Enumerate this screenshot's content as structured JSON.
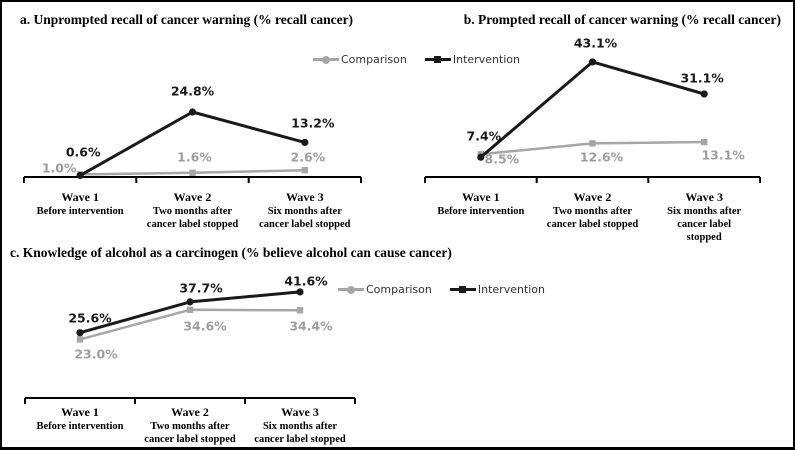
{
  "figure": {
    "legend": {
      "comparison": "Comparison",
      "intervention": "Intervention"
    },
    "colors": {
      "intervention": "#1a1a1a",
      "comparison": "#a6a6a6",
      "comparison_label": "#9e9e9e",
      "axis": "#000000"
    }
  },
  "chart_data": [
    {
      "id": "a",
      "type": "line",
      "title": "a. Unprompted recall of cancer warning (% recall cancer)",
      "categories": [
        "Wave 1",
        "Wave 2",
        "Wave 3"
      ],
      "category_sublabels": [
        "Before intervention",
        "Two months after\ncancer label stopped",
        "Six months after\ncancer label stopped"
      ],
      "y_axis_visible": false,
      "legend_position": "top-center-shared",
      "series": [
        {
          "name": "Comparison",
          "marker": "square",
          "values": [
            1.0,
            1.6,
            2.6
          ],
          "labels": [
            "1.0%",
            "1.6%",
            "2.6%"
          ]
        },
        {
          "name": "Intervention",
          "marker": "circle",
          "values": [
            0.6,
            24.8,
            13.2
          ],
          "labels": [
            "0.6%",
            "24.8%",
            "13.2%"
          ]
        }
      ]
    },
    {
      "id": "b",
      "type": "line",
      "title": "b. Prompted recall of cancer warning (% recall cancer)",
      "categories": [
        "Wave 1",
        "Wave 2",
        "Wave 3"
      ],
      "category_sublabels": [
        "Before intervention",
        "Two months after\ncancer label stopped",
        "Six months after\ncancer label stopped"
      ],
      "y_axis_visible": false,
      "legend_position": "top-center-shared",
      "series": [
        {
          "name": "Comparison",
          "marker": "square",
          "values": [
            8.5,
            12.6,
            13.1
          ],
          "labels": [
            "8.5%",
            "12.6%",
            "13.1%"
          ]
        },
        {
          "name": "Intervention",
          "marker": "circle",
          "values": [
            7.4,
            43.1,
            31.1
          ],
          "labels": [
            "7.4%",
            "43.1%",
            "31.1%"
          ]
        }
      ]
    },
    {
      "id": "c",
      "type": "line",
      "title": "c. Knowledge of alcohol as a carcinogen (% believe alcohol can cause cancer)",
      "categories": [
        "Wave 1",
        "Wave 2",
        "Wave 3"
      ],
      "category_sublabels": [
        "Before intervention",
        "Two months after\ncancer label stopped",
        "Six months after\ncancer label stopped"
      ],
      "y_axis_visible": false,
      "legend_position": "right-of-plot",
      "series": [
        {
          "name": "Comparison",
          "marker": "square",
          "values": [
            23.0,
            34.6,
            34.4
          ],
          "labels": [
            "23.0%",
            "34.6%",
            "34.4%"
          ]
        },
        {
          "name": "Intervention",
          "marker": "circle",
          "values": [
            25.6,
            37.7,
            41.6
          ],
          "labels": [
            "25.6%",
            "37.7%",
            "41.6%"
          ]
        }
      ]
    }
  ]
}
